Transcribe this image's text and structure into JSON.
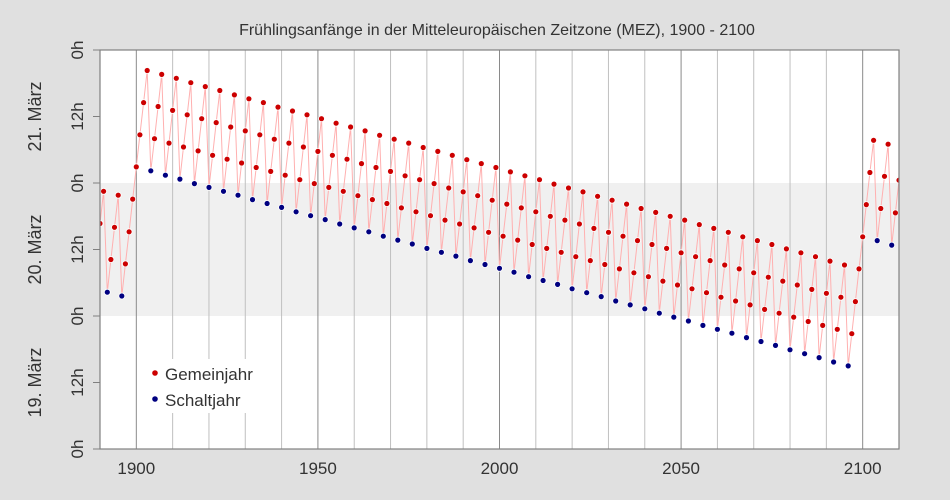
{
  "chart_data": {
    "type": "scatter",
    "title": "Frühlingsanfänge in der Mitteleuropäischen Zeitzone (MEZ), 1900 - 2100",
    "xlabel": "",
    "ylabel": "",
    "xlim": [
      1890,
      2110
    ],
    "ylim": [
      "19. März 0h",
      "22. März 0h"
    ],
    "x_ticks": [
      1900,
      1950,
      2000,
      2050,
      2100
    ],
    "x_minor_grid_step": 10,
    "y_tick_labels": [
      "0h",
      "12h",
      "0h",
      "12h",
      "0h",
      "12h",
      "0h"
    ],
    "day_labels": [
      "19. März",
      "20. März",
      "21. März"
    ],
    "shaded_band": "20. März",
    "grid": true,
    "connect_points": true,
    "legend_position": "bottom-left",
    "point_format": [
      "year",
      "day_of_march",
      "hour"
    ],
    "series": [
      {
        "name": "Gemeinjahr",
        "color": "#cc0000",
        "points": [
          [
            1890,
            20,
            16.7
          ],
          [
            1891,
            20,
            22.5
          ],
          [
            1893,
            20,
            10.2
          ],
          [
            1894,
            20,
            16.0
          ],
          [
            1895,
            20,
            21.8
          ],
          [
            1897,
            20,
            9.4
          ],
          [
            1898,
            20,
            15.2
          ],
          [
            1899,
            20,
            21.1
          ],
          [
            1900,
            21,
            2.9
          ],
          [
            1901,
            21,
            8.7
          ],
          [
            1902,
            21,
            14.5
          ],
          [
            1903,
            21,
            20.3
          ],
          [
            1905,
            21,
            8.0
          ],
          [
            1906,
            21,
            13.8
          ],
          [
            1907,
            21,
            19.6
          ],
          [
            1909,
            21,
            7.2
          ],
          [
            1910,
            21,
            13.1
          ],
          [
            1911,
            21,
            18.9
          ],
          [
            1913,
            21,
            6.5
          ],
          [
            1914,
            21,
            12.3
          ],
          [
            1915,
            21,
            18.1
          ],
          [
            1917,
            21,
            5.8
          ],
          [
            1918,
            21,
            11.6
          ],
          [
            1919,
            21,
            17.4
          ],
          [
            1921,
            21,
            5.0
          ],
          [
            1922,
            21,
            10.9
          ],
          [
            1923,
            21,
            16.7
          ],
          [
            1925,
            21,
            4.3
          ],
          [
            1926,
            21,
            10.1
          ],
          [
            1927,
            21,
            15.9
          ],
          [
            1929,
            21,
            3.6
          ],
          [
            1930,
            21,
            9.4
          ],
          [
            1931,
            21,
            15.2
          ],
          [
            1933,
            21,
            2.8
          ],
          [
            1934,
            21,
            8.7
          ],
          [
            1935,
            21,
            14.5
          ],
          [
            1937,
            21,
            2.1
          ],
          [
            1938,
            21,
            7.9
          ],
          [
            1939,
            21,
            13.7
          ],
          [
            1941,
            21,
            1.4
          ],
          [
            1942,
            21,
            7.2
          ],
          [
            1943,
            21,
            13.0
          ],
          [
            1945,
            21,
            0.6
          ],
          [
            1946,
            21,
            6.5
          ],
          [
            1947,
            21,
            12.3
          ],
          [
            1949,
            20,
            23.9
          ],
          [
            1950,
            21,
            5.7
          ],
          [
            1951,
            21,
            11.6
          ],
          [
            1953,
            20,
            23.2
          ],
          [
            1954,
            21,
            5.0
          ],
          [
            1955,
            21,
            10.8
          ],
          [
            1957,
            20,
            22.5
          ],
          [
            1958,
            21,
            4.3
          ],
          [
            1959,
            21,
            10.1
          ],
          [
            1961,
            20,
            21.7
          ],
          [
            1962,
            21,
            3.5
          ],
          [
            1963,
            21,
            9.4
          ],
          [
            1965,
            20,
            21.0
          ],
          [
            1966,
            21,
            2.8
          ],
          [
            1967,
            21,
            8.6
          ],
          [
            1969,
            20,
            20.3
          ],
          [
            1970,
            21,
            2.1
          ],
          [
            1971,
            21,
            7.9
          ],
          [
            1973,
            20,
            19.5
          ],
          [
            1974,
            21,
            1.3
          ],
          [
            1975,
            21,
            7.2
          ],
          [
            1977,
            20,
            18.8
          ],
          [
            1978,
            21,
            0.6
          ],
          [
            1979,
            21,
            6.4
          ],
          [
            1981,
            20,
            18.1
          ],
          [
            1982,
            20,
            23.9
          ],
          [
            1983,
            21,
            5.7
          ],
          [
            1985,
            20,
            17.3
          ],
          [
            1986,
            20,
            23.1
          ],
          [
            1987,
            21,
            5.0
          ],
          [
            1989,
            20,
            16.6
          ],
          [
            1990,
            20,
            22.4
          ],
          [
            1991,
            21,
            4.2
          ],
          [
            1993,
            20,
            15.9
          ],
          [
            1994,
            20,
            21.7
          ],
          [
            1995,
            21,
            3.5
          ],
          [
            1997,
            20,
            15.1
          ],
          [
            1998,
            20,
            20.9
          ],
          [
            1999,
            21,
            2.8
          ],
          [
            2001,
            20,
            14.4
          ],
          [
            2002,
            20,
            20.2
          ],
          [
            2003,
            21,
            2.0
          ],
          [
            2005,
            20,
            13.7
          ],
          [
            2006,
            20,
            19.5
          ],
          [
            2007,
            21,
            1.3
          ],
          [
            2009,
            20,
            12.9
          ],
          [
            2010,
            20,
            18.8
          ],
          [
            2011,
            21,
            0.6
          ],
          [
            2013,
            20,
            12.2
          ],
          [
            2014,
            20,
            18.0
          ],
          [
            2015,
            20,
            23.8
          ],
          [
            2017,
            20,
            11.5
          ],
          [
            2018,
            20,
            17.3
          ],
          [
            2019,
            20,
            23.1
          ],
          [
            2021,
            20,
            10.7
          ],
          [
            2022,
            20,
            16.6
          ],
          [
            2023,
            20,
            22.4
          ],
          [
            2025,
            20,
            10.0
          ],
          [
            2026,
            20,
            15.8
          ],
          [
            2027,
            20,
            21.6
          ],
          [
            2029,
            20,
            9.3
          ],
          [
            2030,
            20,
            15.1
          ],
          [
            2031,
            20,
            20.9
          ],
          [
            2033,
            20,
            8.5
          ],
          [
            2034,
            20,
            14.4
          ],
          [
            2035,
            20,
            20.2
          ],
          [
            2037,
            20,
            7.8
          ],
          [
            2038,
            20,
            13.6
          ],
          [
            2039,
            20,
            19.4
          ],
          [
            2041,
            20,
            7.1
          ],
          [
            2042,
            20,
            12.9
          ],
          [
            2043,
            20,
            18.7
          ],
          [
            2045,
            20,
            6.3
          ],
          [
            2046,
            20,
            12.2
          ],
          [
            2047,
            20,
            18.0
          ],
          [
            2049,
            20,
            5.6
          ],
          [
            2050,
            20,
            11.4
          ],
          [
            2051,
            20,
            17.3
          ],
          [
            2053,
            20,
            4.9
          ],
          [
            2054,
            20,
            10.7
          ],
          [
            2055,
            20,
            16.5
          ],
          [
            2057,
            20,
            4.2
          ],
          [
            2058,
            20,
            10.0
          ],
          [
            2059,
            20,
            15.8
          ],
          [
            2061,
            20,
            3.4
          ],
          [
            2062,
            20,
            9.2
          ],
          [
            2063,
            20,
            15.1
          ],
          [
            2065,
            20,
            2.7
          ],
          [
            2066,
            20,
            8.5
          ],
          [
            2067,
            20,
            14.3
          ],
          [
            2069,
            20,
            2.0
          ],
          [
            2070,
            20,
            7.8
          ],
          [
            2071,
            20,
            13.6
          ],
          [
            2073,
            20,
            1.2
          ],
          [
            2074,
            20,
            7.0
          ],
          [
            2075,
            20,
            12.9
          ],
          [
            2077,
            20,
            0.5
          ],
          [
            2078,
            20,
            6.3
          ],
          [
            2079,
            20,
            12.1
          ],
          [
            2081,
            19,
            23.8
          ],
          [
            2082,
            20,
            5.6
          ],
          [
            2083,
            20,
            11.4
          ],
          [
            2085,
            19,
            23.0
          ],
          [
            2086,
            20,
            4.8
          ],
          [
            2087,
            20,
            10.7
          ],
          [
            2089,
            19,
            22.3
          ],
          [
            2090,
            20,
            4.1
          ],
          [
            2091,
            20,
            9.9
          ],
          [
            2093,
            19,
            21.6
          ],
          [
            2094,
            20,
            3.4
          ],
          [
            2095,
            20,
            9.2
          ],
          [
            2097,
            19,
            20.8
          ],
          [
            2098,
            20,
            2.6
          ],
          [
            2099,
            20,
            8.5
          ],
          [
            2100,
            20,
            14.3
          ],
          [
            2101,
            20,
            20.1
          ],
          [
            2102,
            21,
            1.9
          ],
          [
            2103,
            21,
            7.7
          ],
          [
            2105,
            20,
            19.4
          ],
          [
            2106,
            21,
            1.2
          ],
          [
            2107,
            21,
            7.0
          ],
          [
            2109,
            20,
            18.6
          ],
          [
            2110,
            21,
            0.5
          ]
        ]
      },
      {
        "name": "Schaltjahr",
        "color": "#000080",
        "points": [
          [
            1892,
            20,
            4.3
          ],
          [
            1896,
            20,
            3.6
          ],
          [
            1904,
            21,
            2.2
          ],
          [
            1908,
            21,
            1.4
          ],
          [
            1912,
            21,
            0.7
          ],
          [
            1916,
            20,
            23.9
          ],
          [
            1920,
            20,
            23.2
          ],
          [
            1924,
            20,
            22.5
          ],
          [
            1928,
            20,
            21.8
          ],
          [
            1932,
            20,
            21.0
          ],
          [
            1936,
            20,
            20.3
          ],
          [
            1940,
            20,
            19.6
          ],
          [
            1944,
            20,
            18.8
          ],
          [
            1948,
            20,
            18.1
          ],
          [
            1952,
            20,
            17.4
          ],
          [
            1956,
            20,
            16.6
          ],
          [
            1960,
            20,
            15.9
          ],
          [
            1964,
            20,
            15.2
          ],
          [
            1968,
            20,
            14.4
          ],
          [
            1972,
            20,
            13.7
          ],
          [
            1976,
            20,
            13.0
          ],
          [
            1980,
            20,
            12.2
          ],
          [
            1984,
            20,
            11.5
          ],
          [
            1988,
            20,
            10.8
          ],
          [
            1992,
            20,
            10.0
          ],
          [
            1996,
            20,
            9.3
          ],
          [
            2000,
            20,
            8.6
          ],
          [
            2004,
            20,
            7.9
          ],
          [
            2008,
            20,
            7.1
          ],
          [
            2012,
            20,
            6.4
          ],
          [
            2016,
            20,
            5.7
          ],
          [
            2020,
            20,
            4.9
          ],
          [
            2024,
            20,
            4.2
          ],
          [
            2028,
            20,
            3.5
          ],
          [
            2032,
            20,
            2.7
          ],
          [
            2036,
            20,
            2.0
          ],
          [
            2040,
            20,
            1.3
          ],
          [
            2044,
            20,
            0.5
          ],
          [
            2048,
            19,
            23.8
          ],
          [
            2052,
            19,
            23.1
          ],
          [
            2056,
            19,
            22.3
          ],
          [
            2060,
            19,
            21.6
          ],
          [
            2064,
            19,
            20.9
          ],
          [
            2068,
            19,
            20.1
          ],
          [
            2072,
            19,
            19.4
          ],
          [
            2076,
            19,
            18.7
          ],
          [
            2080,
            19,
            17.9
          ],
          [
            2084,
            19,
            17.2
          ],
          [
            2088,
            19,
            16.5
          ],
          [
            2092,
            19,
            15.7
          ],
          [
            2096,
            19,
            15.0
          ],
          [
            2104,
            20,
            13.6
          ],
          [
            2108,
            20,
            12.8
          ]
        ]
      }
    ],
    "line_color": "#ffb0b0",
    "band_color": "#f0f0f0",
    "background_color": "#e0e0e0"
  }
}
